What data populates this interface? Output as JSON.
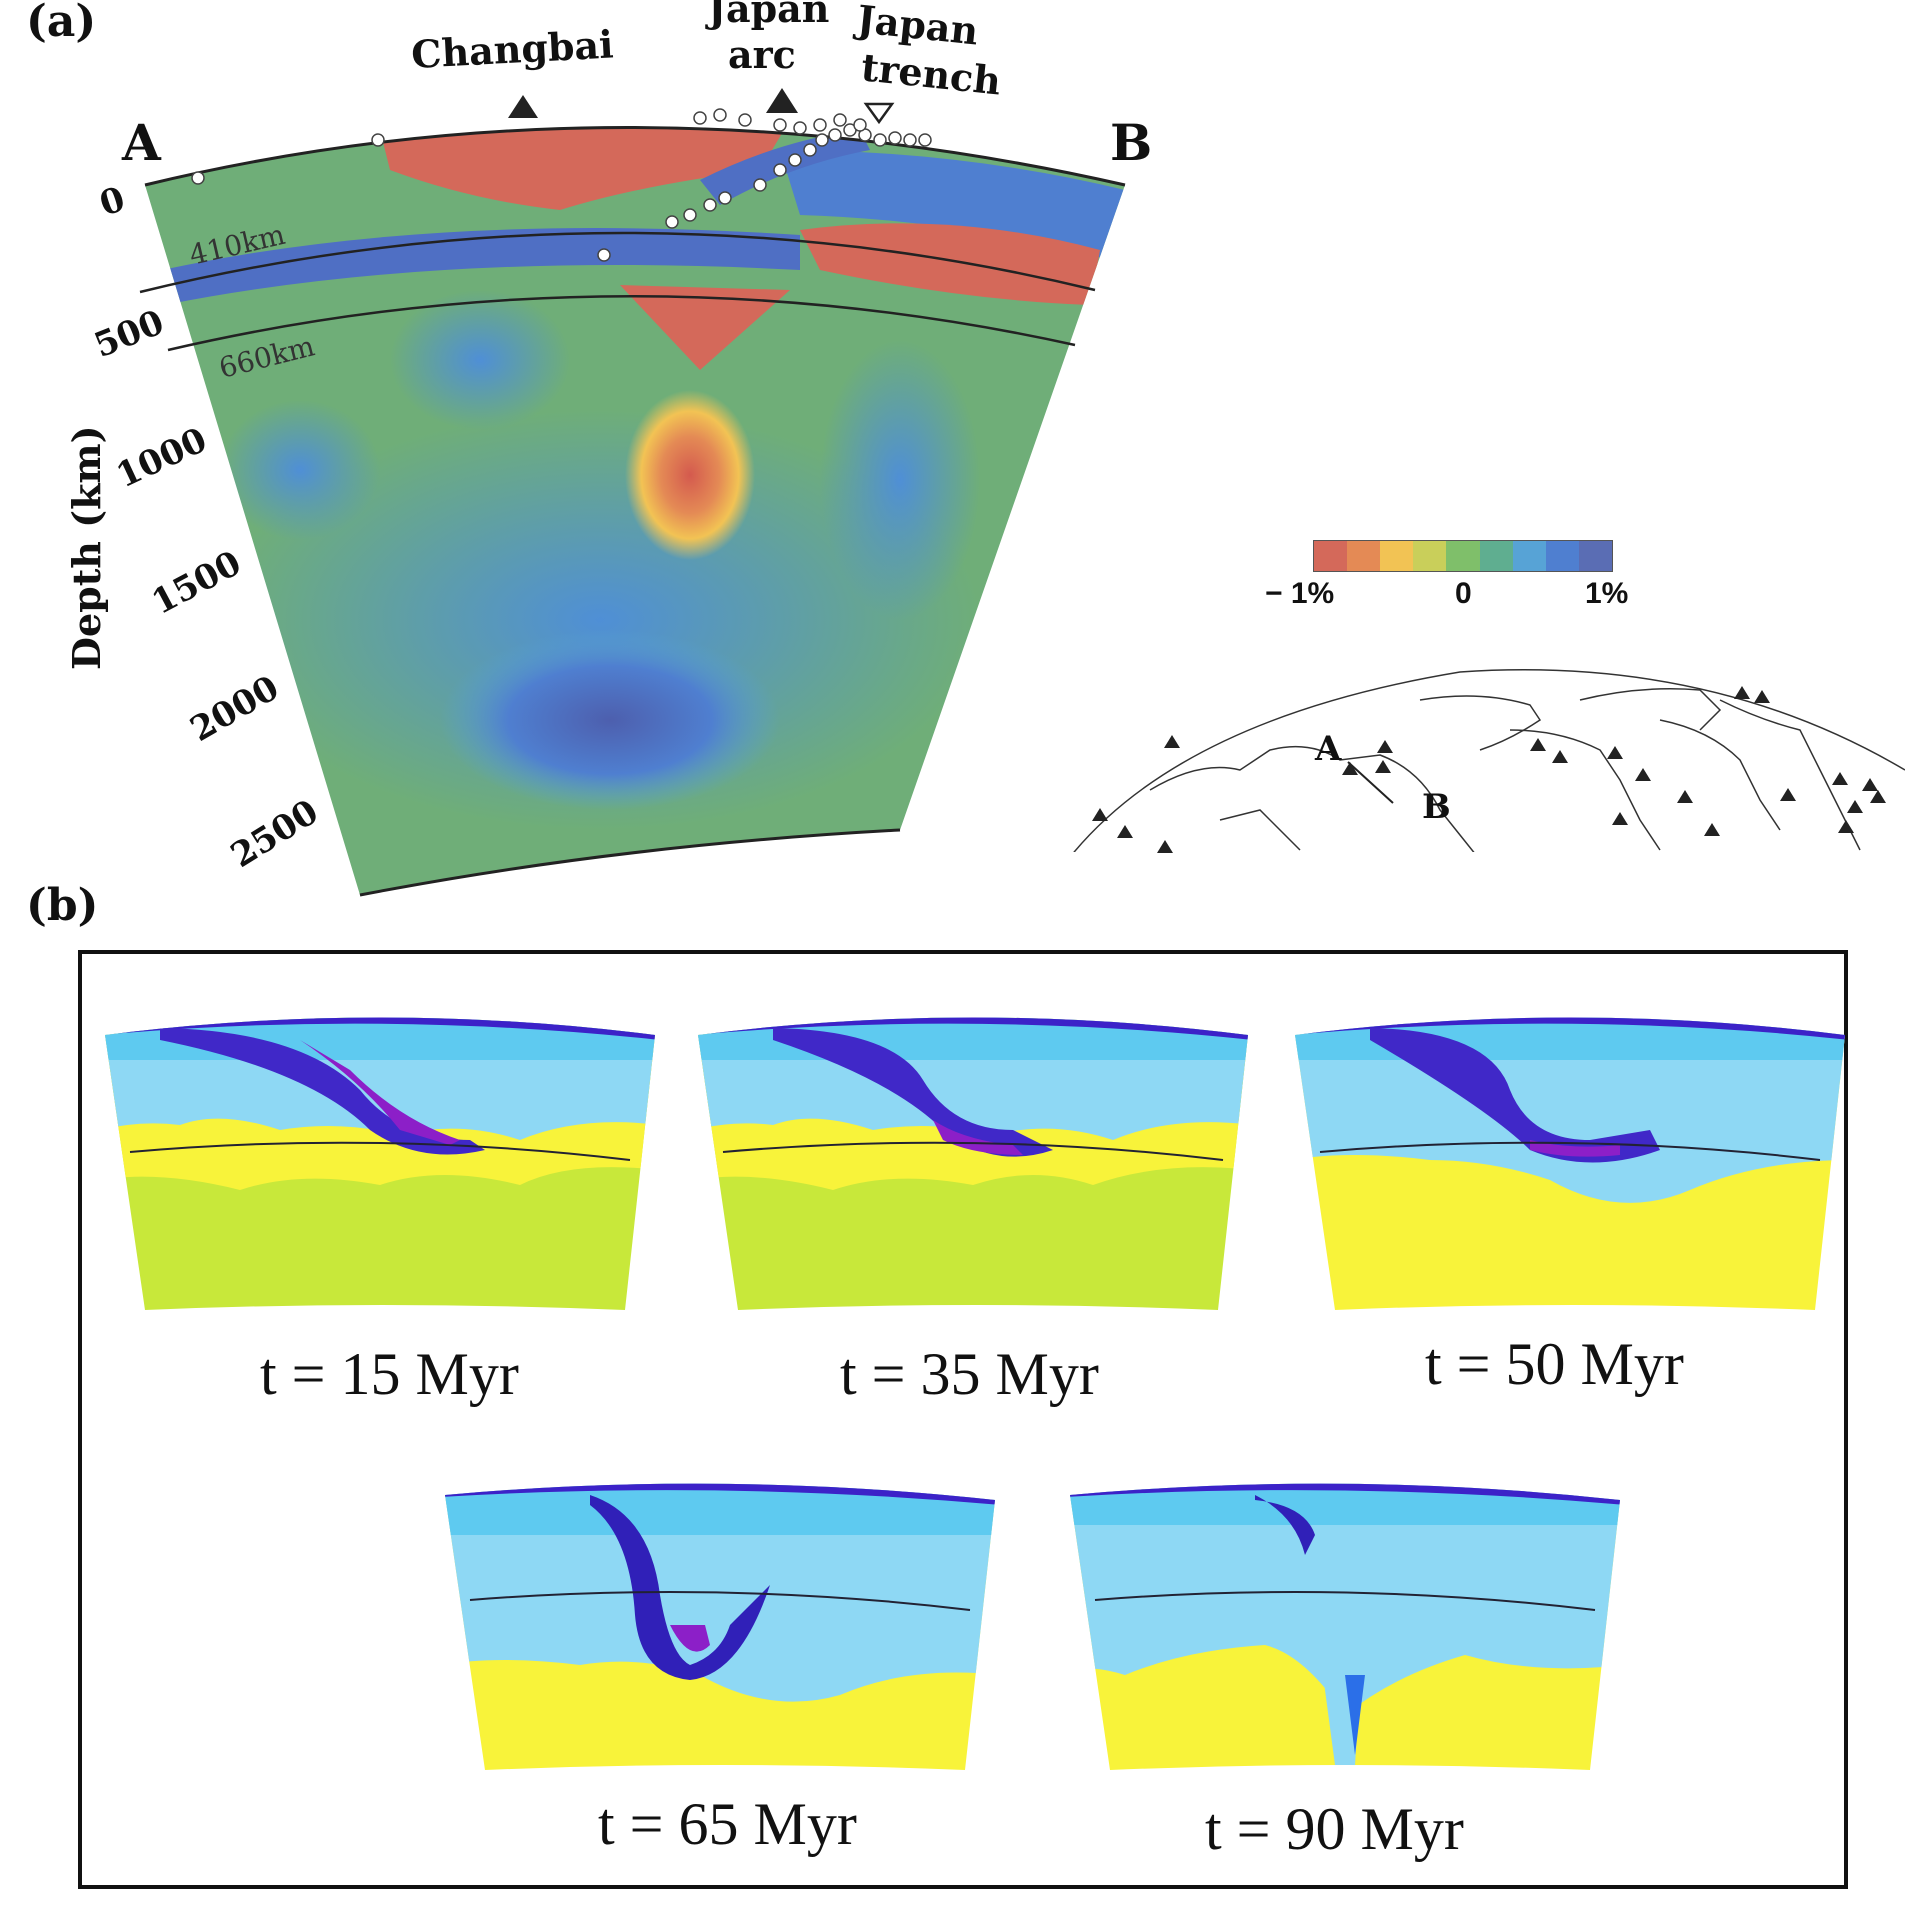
{
  "panel_a": {
    "label": "(a)",
    "endpoint_left": "A",
    "endpoint_right": "B",
    "label_changbai": "Changbai",
    "label_japan_arc": [
      "Japan",
      "arc"
    ],
    "label_japan_trench": [
      "Japan",
      "trench"
    ],
    "y_axis_title": "Depth (km)",
    "depth_ticks": [
      "0",
      "500",
      "1000",
      "1500",
      "2000",
      "2500"
    ],
    "label_410": "410km",
    "label_660": "660km",
    "colorbar": {
      "ticks": [
        "− 1%",
        "0",
        "1%"
      ],
      "colors": [
        "#d4695a",
        "#e48a55",
        "#f2c354",
        "#c9cf5a",
        "#7fbf6a",
        "#5fae90",
        "#57a3d6",
        "#4f7fd0",
        "#5a6db4"
      ]
    },
    "map_inset": {
      "label_a": "A",
      "label_b": "B"
    }
  },
  "panel_b": {
    "label": "(b)",
    "snapshots": [
      {
        "time": "t = 15 Myr"
      },
      {
        "time": "t = 35 Myr"
      },
      {
        "time": "t = 50 Myr"
      },
      {
        "time": "t = 65 Myr"
      },
      {
        "time": "t = 90 Myr"
      }
    ]
  }
}
